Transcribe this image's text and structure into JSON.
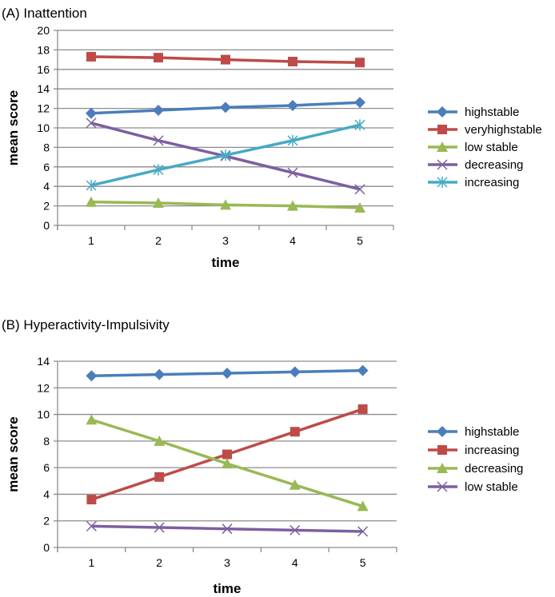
{
  "chart_data": [
    {
      "type": "line",
      "title": "(A)   Inattention",
      "xlabel": "time",
      "ylabel": "mean score",
      "categories": [
        "1",
        "2",
        "3",
        "4",
        "5"
      ],
      "ylim": [
        0,
        20
      ],
      "ystep": 2,
      "grid": true,
      "legend": "right",
      "series": [
        {
          "name": "highstable",
          "color": "#4a7ebb",
          "marker": "diamond",
          "values": [
            11.5,
            11.8,
            12.1,
            12.3,
            12.6
          ]
        },
        {
          "name": "veryhighstable",
          "color": "#be4b48",
          "marker": "square",
          "values": [
            17.3,
            17.2,
            17.0,
            16.8,
            16.7
          ]
        },
        {
          "name": "low stable",
          "color": "#98b954",
          "marker": "triangle",
          "values": [
            2.4,
            2.3,
            2.1,
            2.0,
            1.8
          ]
        },
        {
          "name": "decreasing",
          "color": "#7d5fa0",
          "marker": "x",
          "values": [
            10.5,
            8.7,
            7.1,
            5.4,
            3.7
          ]
        },
        {
          "name": "increasing",
          "color": "#46aac5",
          "marker": "star",
          "values": [
            4.1,
            5.7,
            7.2,
            8.7,
            10.3
          ]
        }
      ]
    },
    {
      "type": "line",
      "title": "(B)   Hyperactivity-Impulsivity",
      "xlabel": "time",
      "ylabel": "mean score",
      "categories": [
        "1",
        "2",
        "3",
        "4",
        "5"
      ],
      "ylim": [
        0,
        14
      ],
      "ystep": 2,
      "grid": true,
      "legend": "right",
      "series": [
        {
          "name": "highstable",
          "color": "#4a7ebb",
          "marker": "diamond",
          "values": [
            12.9,
            13.0,
            13.1,
            13.2,
            13.3
          ]
        },
        {
          "name": "increasing",
          "color": "#be4b48",
          "marker": "square",
          "values": [
            3.6,
            5.3,
            7.0,
            8.7,
            10.4
          ]
        },
        {
          "name": "decreasing",
          "color": "#98b954",
          "marker": "triangle",
          "values": [
            9.6,
            8.0,
            6.3,
            4.7,
            3.1
          ]
        },
        {
          "name": "low stable",
          "color": "#7d5fa0",
          "marker": "x",
          "values": [
            1.6,
            1.5,
            1.4,
            1.3,
            1.2
          ]
        }
      ]
    }
  ]
}
